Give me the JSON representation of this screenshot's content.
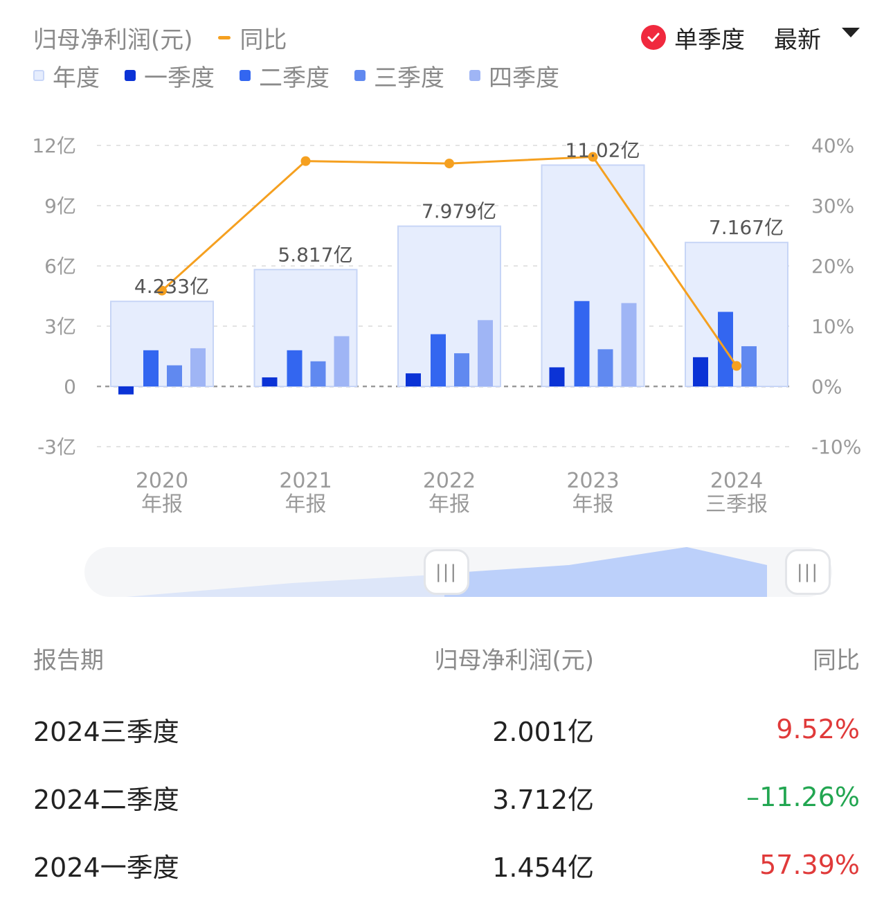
{
  "header": {
    "metric_legend": "归母净利润(元)",
    "yoy_legend": "同比",
    "single_quarter_label": "单季度",
    "latest_label": "最新"
  },
  "legend": [
    {
      "label": "年度",
      "color": "#e6edfd",
      "border": "#c8d6f7"
    },
    {
      "label": "一季度",
      "color": "#0b33d6"
    },
    {
      "label": "二季度",
      "color": "#3366f0"
    },
    {
      "label": "三季度",
      "color": "#6089f0"
    },
    {
      "label": "四季度",
      "color": "#9fb5f5"
    }
  ],
  "colors": {
    "annual_fill": "#e6edfd",
    "annual_border": "#c7d5f6",
    "q1": "#0b33d6",
    "q2": "#3366f0",
    "q3": "#6089f0",
    "q4": "#9fb5f5",
    "yoy_line": "#f5a020",
    "check_red": "#f0293e",
    "positive": "#e03a3a",
    "negative": "#22a651"
  },
  "chart_data": {
    "type": "bar",
    "categories": [
      {
        "year": "2020",
        "period": "年报"
      },
      {
        "year": "2021",
        "period": "年报"
      },
      {
        "year": "2022",
        "period": "年报"
      },
      {
        "year": "2023",
        "period": "年报"
      },
      {
        "year": "2024",
        "period": "三季报"
      }
    ],
    "annual": [
      4.233,
      5.817,
      7.979,
      11.02,
      7.167
    ],
    "annual_labels": [
      "4.233亿",
      "5.817亿",
      "7.979亿",
      "11.02亿",
      "7.167亿"
    ],
    "quarters": [
      [
        -0.4,
        1.8,
        1.05,
        1.9
      ],
      [
        0.45,
        1.8,
        1.25,
        2.5
      ],
      [
        0.65,
        2.6,
        1.65,
        3.3
      ],
      [
        0.95,
        4.25,
        1.85,
        4.15
      ],
      [
        1.454,
        3.712,
        2.001,
        null
      ]
    ],
    "yoy": [
      15.9,
      37.4,
      37.0,
      38.1,
      3.4
    ],
    "y_left": {
      "min": -3,
      "max": 12,
      "ticks": [
        -3,
        0,
        3,
        6,
        9,
        12
      ],
      "tick_labels": [
        "-3亿",
        "0",
        "3亿",
        "6亿",
        "9亿",
        "12亿"
      ]
    },
    "y_right": {
      "min": -10,
      "max": 40,
      "ticks": [
        -10,
        0,
        10,
        20,
        30,
        40
      ],
      "tick_labels": [
        "-10%",
        "0%",
        "10%",
        "20%",
        "30%",
        "40%"
      ]
    },
    "grid": true
  },
  "table": {
    "headers": [
      "报告期",
      "归母净利润(元)",
      "同比"
    ],
    "rows": [
      {
        "period": "2024三季度",
        "value": "2.001亿",
        "yoy": "9.52%",
        "trend": "up"
      },
      {
        "period": "2024二季度",
        "value": "3.712亿",
        "yoy": "–11.26%",
        "trend": "down"
      },
      {
        "period": "2024一季度",
        "value": "1.454亿",
        "yoy": "57.39%",
        "trend": "up"
      }
    ]
  }
}
